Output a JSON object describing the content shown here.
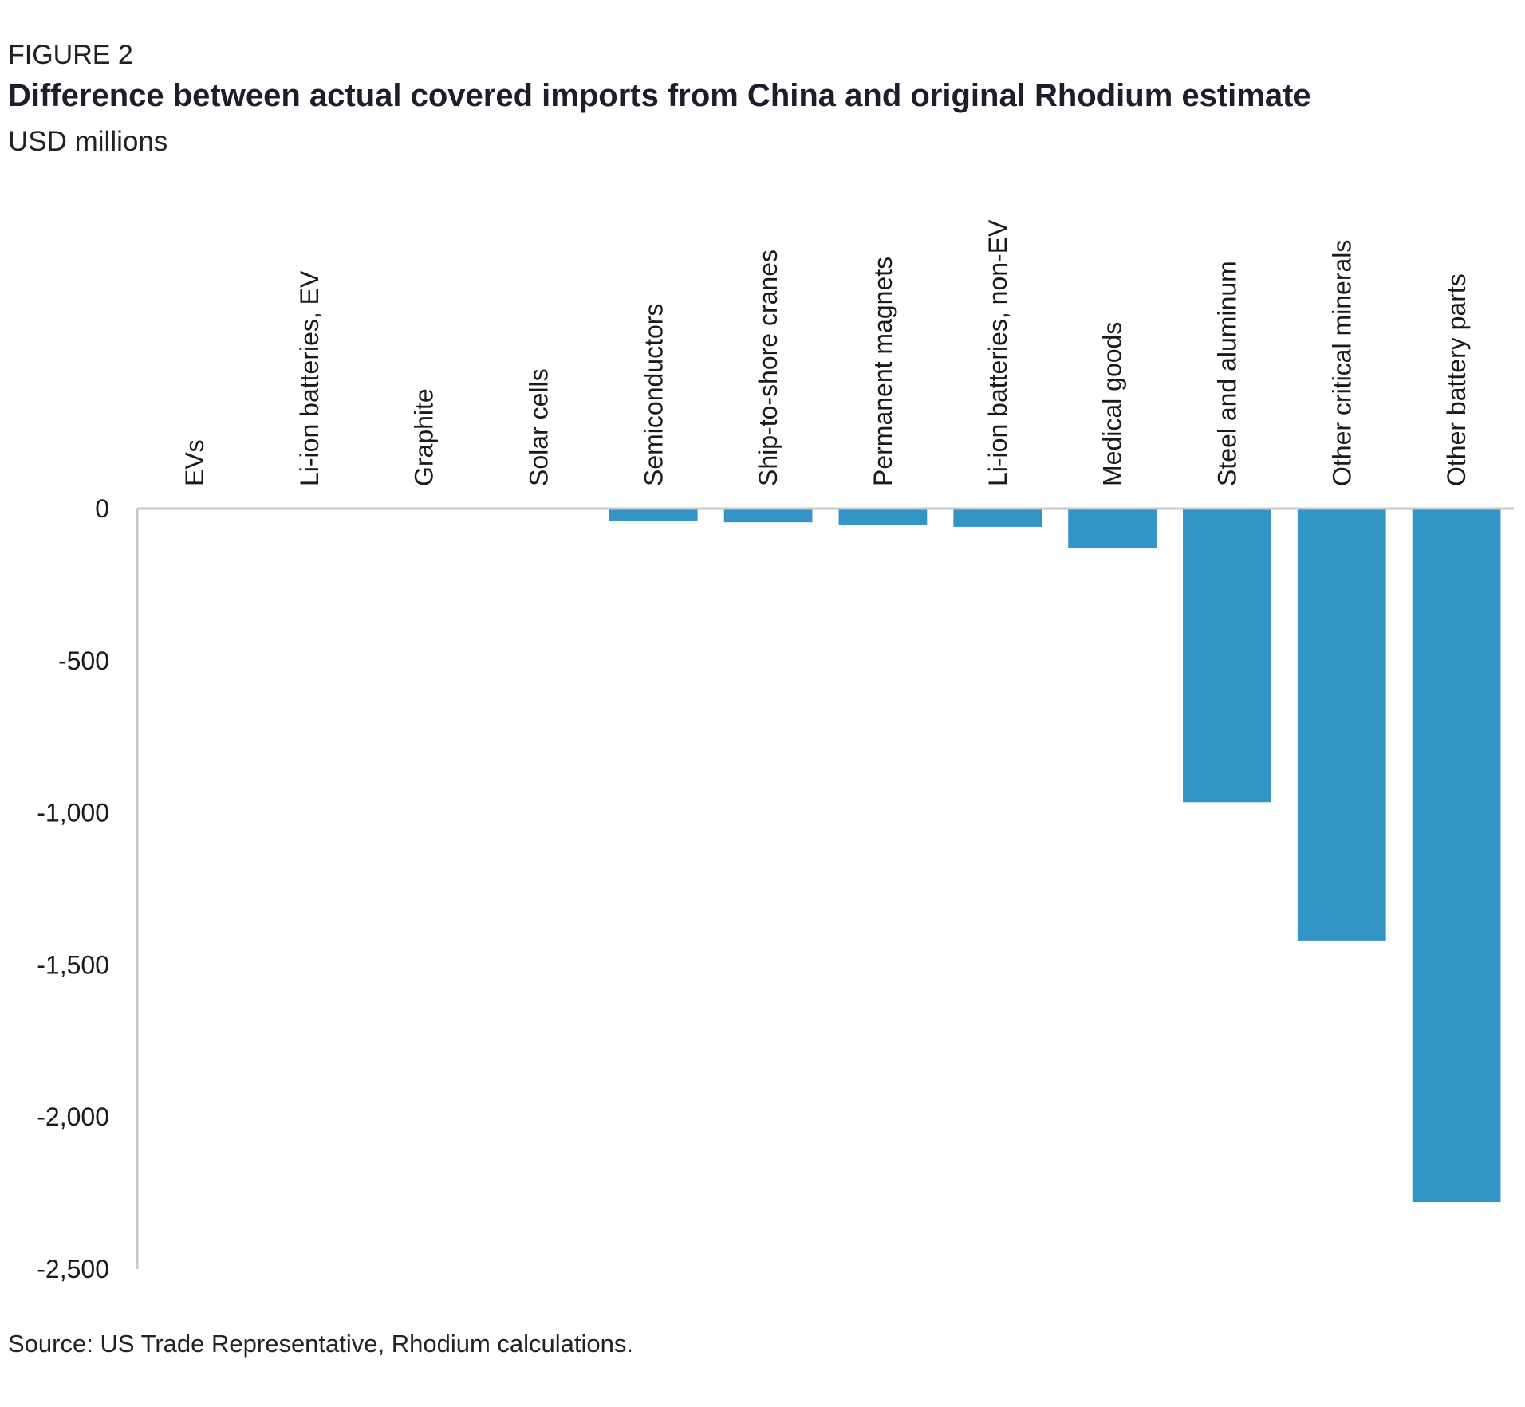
{
  "figure_label": "FIGURE 2",
  "source": "Source: US Trade Representative, Rhodium calculations.",
  "chart_data": {
    "type": "bar",
    "title": "Difference between actual covered imports from China and original Rhodium estimate",
    "subtitle": "USD millions",
    "xlabel": "",
    "ylabel": "",
    "categories": [
      "EVs",
      "Li-ion batteries, EV",
      "Graphite",
      "Solar cells",
      "Semiconductors",
      "Ship-to-shore cranes",
      "Permanent magnets",
      "Li-ion batteries, non-EV",
      "Medical goods",
      "Steel and aluminum",
      "Other critical minerals",
      "Other battery parts"
    ],
    "values": [
      0,
      0,
      0,
      0,
      -40,
      -45,
      -55,
      -60,
      -130,
      -965,
      -1420,
      -2280
    ],
    "ylim": [
      -2500,
      0
    ],
    "yticks": [
      0,
      -500,
      -1000,
      -1500,
      -2000,
      -2500
    ],
    "ytick_labels": [
      "0",
      "-500",
      "-1,000",
      "-1,500",
      "-2,000",
      "-2,500"
    ],
    "bar_color": "#3395c6",
    "axis_color": "#c8c8c8",
    "grid": false,
    "legend": "none"
  }
}
